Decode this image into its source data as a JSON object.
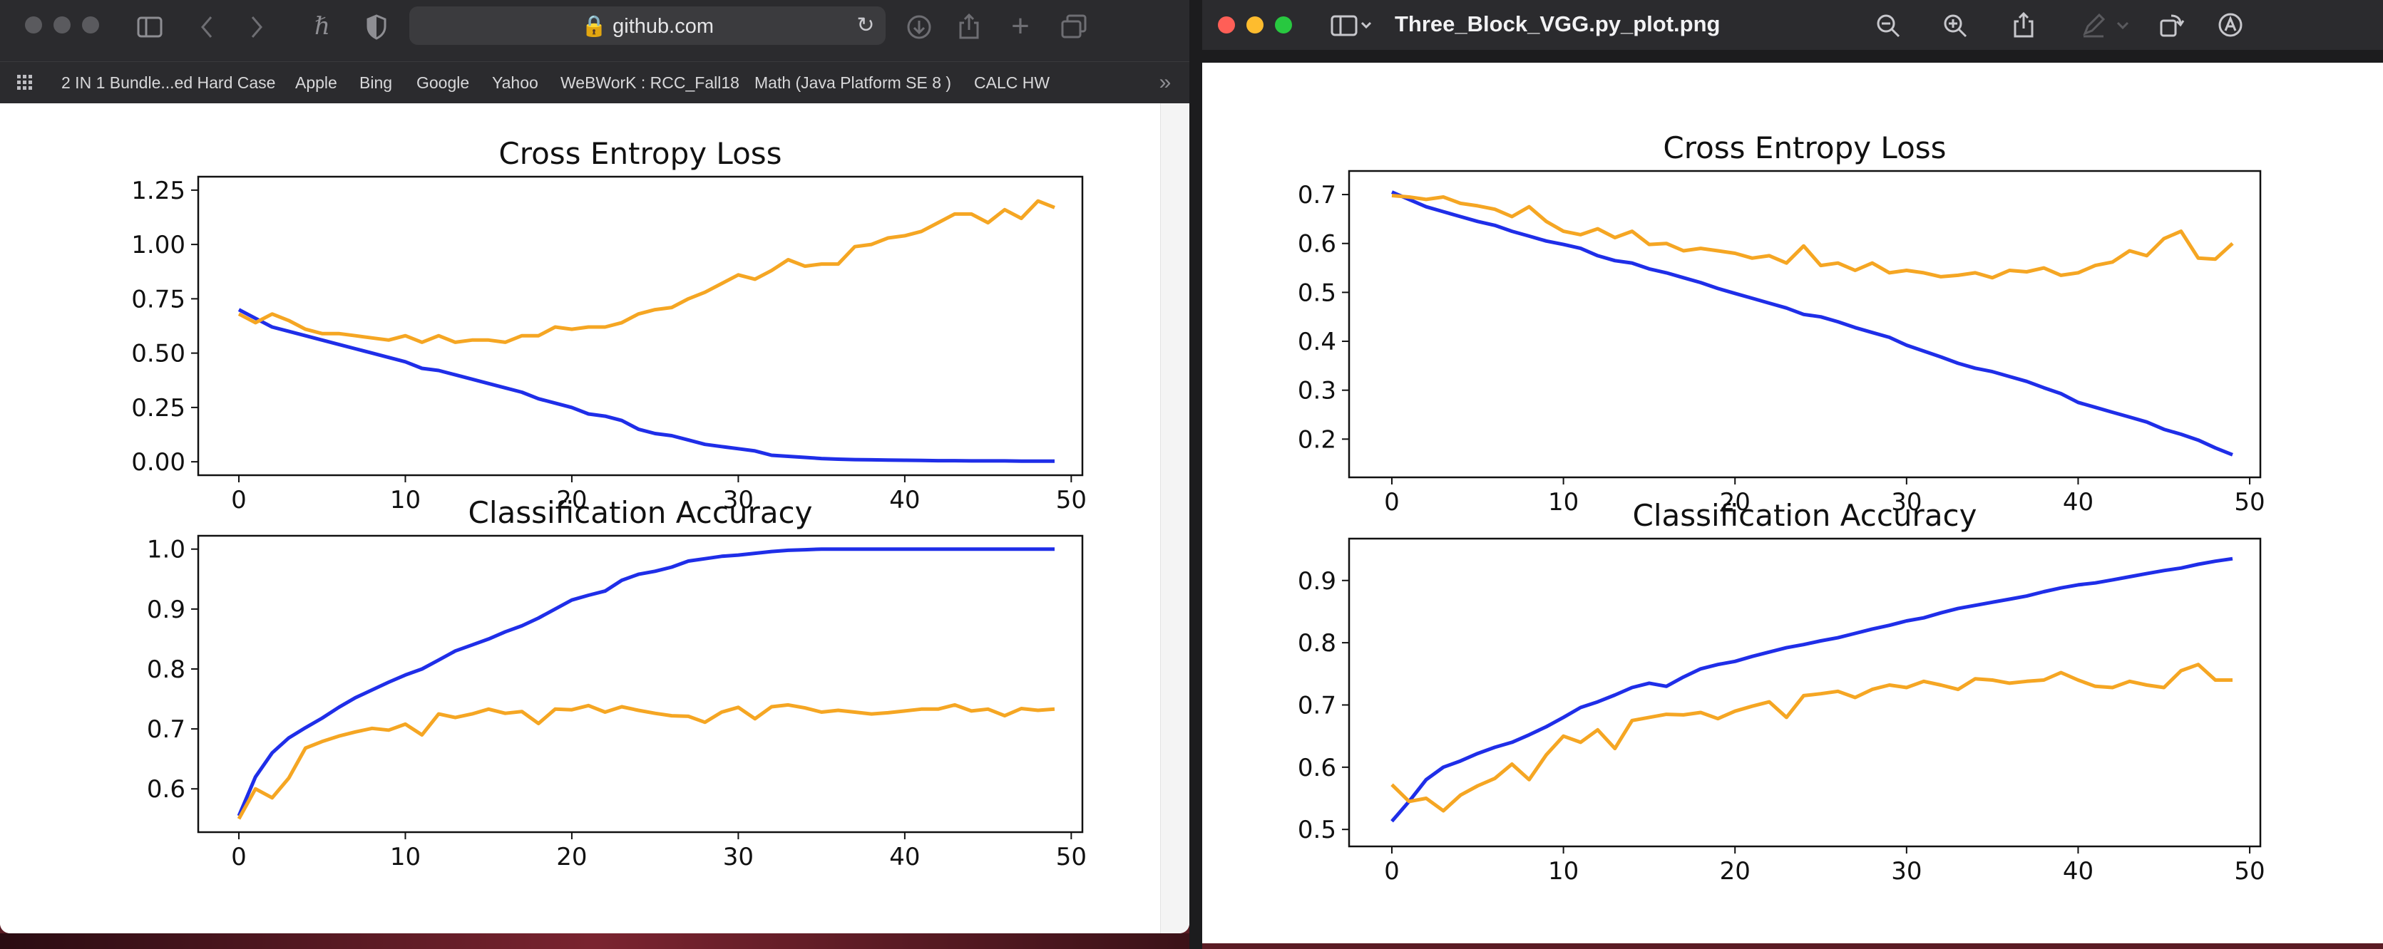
{
  "safari": {
    "address": "github.com",
    "bookmarks": [
      "2 IN 1 Bundle...ed Hard Case",
      "Apple",
      "Bing",
      "Google",
      "Yahoo",
      "WeBWorK : RCC_Fall18",
      "Math (Java Platform SE 8 )",
      "CALC HW"
    ]
  },
  "preview": {
    "title": "Three_Block_VGG.py_plot.png"
  },
  "colors": {
    "train": "#1f2ee8",
    "test": "#f5a623"
  },
  "chart_data": [
    {
      "type": "line",
      "window": "safari",
      "title": "Cross Entropy Loss",
      "xlabel": "",
      "ylabel": "",
      "xlim": [
        0,
        49
      ],
      "ylim": [
        0,
        1.25
      ],
      "xticks": [
        0,
        10,
        20,
        30,
        40,
        50
      ],
      "yticks": [
        0.0,
        0.25,
        0.5,
        0.75,
        1.0,
        1.25
      ],
      "ytick_labels": [
        "0.00",
        "0.25",
        "0.50",
        "0.75",
        "1.00",
        "1.25"
      ],
      "series": [
        {
          "color": "#1f2ee8",
          "values": [
            0.7,
            0.66,
            0.62,
            0.6,
            0.58,
            0.56,
            0.54,
            0.52,
            0.5,
            0.48,
            0.46,
            0.43,
            0.42,
            0.4,
            0.38,
            0.36,
            0.34,
            0.32,
            0.29,
            0.27,
            0.25,
            0.22,
            0.21,
            0.19,
            0.15,
            0.13,
            0.12,
            0.1,
            0.08,
            0.07,
            0.06,
            0.05,
            0.03,
            0.025,
            0.02,
            0.015,
            0.012,
            0.01,
            0.009,
            0.008,
            0.007,
            0.006,
            0.005,
            0.005,
            0.004,
            0.004,
            0.004,
            0.003,
            0.003,
            0.003
          ]
        },
        {
          "color": "#f5a623",
          "values": [
            0.68,
            0.64,
            0.68,
            0.65,
            0.61,
            0.59,
            0.59,
            0.58,
            0.57,
            0.56,
            0.58,
            0.55,
            0.58,
            0.55,
            0.56,
            0.56,
            0.55,
            0.58,
            0.58,
            0.62,
            0.61,
            0.62,
            0.62,
            0.64,
            0.68,
            0.7,
            0.71,
            0.75,
            0.78,
            0.82,
            0.86,
            0.84,
            0.88,
            0.93,
            0.9,
            0.91,
            0.91,
            0.99,
            1.0,
            1.03,
            1.04,
            1.06,
            1.1,
            1.14,
            1.14,
            1.1,
            1.16,
            1.12,
            1.2,
            1.17
          ]
        }
      ]
    },
    {
      "type": "line",
      "window": "safari",
      "title": "Classification Accuracy",
      "xlabel": "",
      "ylabel": "",
      "xlim": [
        0,
        49
      ],
      "ylim": [
        0.55,
        1.0
      ],
      "xticks": [
        0,
        10,
        20,
        30,
        40,
        50
      ],
      "yticks": [
        0.6,
        0.7,
        0.8,
        0.9,
        1.0
      ],
      "ytick_labels": [
        "0.6",
        "0.7",
        "0.8",
        "0.9",
        "1.0"
      ],
      "series": [
        {
          "color": "#1f2ee8",
          "values": [
            0.555,
            0.62,
            0.66,
            0.685,
            0.702,
            0.718,
            0.736,
            0.752,
            0.765,
            0.778,
            0.79,
            0.8,
            0.815,
            0.83,
            0.84,
            0.85,
            0.862,
            0.872,
            0.885,
            0.9,
            0.915,
            0.923,
            0.93,
            0.948,
            0.958,
            0.963,
            0.97,
            0.98,
            0.984,
            0.988,
            0.99,
            0.993,
            0.996,
            0.998,
            0.999,
            1.0,
            1.0,
            1.0,
            1.0,
            1.0,
            1.0,
            1.0,
            1.0,
            1.0,
            1.0,
            1.0,
            1.0,
            1.0,
            1.0,
            1.0
          ]
        },
        {
          "color": "#f5a623",
          "values": [
            0.55,
            0.6,
            0.585,
            0.618,
            0.668,
            0.679,
            0.688,
            0.695,
            0.701,
            0.698,
            0.708,
            0.69,
            0.725,
            0.719,
            0.725,
            0.733,
            0.726,
            0.729,
            0.709,
            0.733,
            0.732,
            0.739,
            0.728,
            0.737,
            0.731,
            0.726,
            0.722,
            0.721,
            0.711,
            0.728,
            0.736,
            0.717,
            0.737,
            0.74,
            0.735,
            0.728,
            0.731,
            0.728,
            0.725,
            0.727,
            0.73,
            0.733,
            0.733,
            0.74,
            0.73,
            0.733,
            0.722,
            0.734,
            0.731,
            0.733
          ]
        }
      ]
    },
    {
      "type": "line",
      "window": "preview",
      "title": "Cross Entropy Loss",
      "xlabel": "",
      "ylabel": "",
      "xlim": [
        0,
        49
      ],
      "ylim": [
        0.15,
        0.72
      ],
      "xticks": [
        0,
        10,
        20,
        30,
        40,
        50
      ],
      "yticks": [
        0.2,
        0.3,
        0.4,
        0.5,
        0.6,
        0.7
      ],
      "ytick_labels": [
        "0.2",
        "0.3",
        "0.4",
        "0.5",
        "0.6",
        "0.7"
      ],
      "series": [
        {
          "color": "#1f2ee8",
          "values": [
            0.705,
            0.69,
            0.675,
            0.665,
            0.655,
            0.645,
            0.637,
            0.625,
            0.615,
            0.605,
            0.598,
            0.59,
            0.575,
            0.565,
            0.56,
            0.548,
            0.54,
            0.53,
            0.52,
            0.508,
            0.498,
            0.488,
            0.478,
            0.468,
            0.455,
            0.45,
            0.44,
            0.428,
            0.418,
            0.408,
            0.392,
            0.38,
            0.368,
            0.355,
            0.345,
            0.338,
            0.328,
            0.318,
            0.305,
            0.293,
            0.275,
            0.265,
            0.255,
            0.245,
            0.235,
            0.22,
            0.21,
            0.198,
            0.182,
            0.168
          ]
        },
        {
          "color": "#f5a623",
          "values": [
            0.698,
            0.695,
            0.69,
            0.695,
            0.682,
            0.677,
            0.67,
            0.655,
            0.675,
            0.645,
            0.625,
            0.618,
            0.63,
            0.612,
            0.625,
            0.598,
            0.6,
            0.585,
            0.59,
            0.585,
            0.58,
            0.57,
            0.575,
            0.56,
            0.595,
            0.555,
            0.56,
            0.545,
            0.56,
            0.54,
            0.545,
            0.54,
            0.532,
            0.535,
            0.54,
            0.53,
            0.545,
            0.542,
            0.55,
            0.535,
            0.54,
            0.555,
            0.562,
            0.585,
            0.575,
            0.61,
            0.625,
            0.57,
            0.568,
            0.6
          ]
        }
      ]
    },
    {
      "type": "line",
      "window": "preview",
      "title": "Classification Accuracy",
      "xlabel": "",
      "ylabel": "",
      "xlim": [
        0,
        49
      ],
      "ylim": [
        0.495,
        0.945
      ],
      "xticks": [
        0,
        10,
        20,
        30,
        40,
        50
      ],
      "yticks": [
        0.5,
        0.6,
        0.7,
        0.8,
        0.9
      ],
      "ytick_labels": [
        "0.5",
        "0.6",
        "0.7",
        "0.8",
        "0.9"
      ],
      "series": [
        {
          "color": "#1f2ee8",
          "values": [
            0.513,
            0.545,
            0.58,
            0.6,
            0.61,
            0.622,
            0.632,
            0.64,
            0.652,
            0.665,
            0.68,
            0.696,
            0.705,
            0.716,
            0.728,
            0.735,
            0.73,
            0.745,
            0.758,
            0.765,
            0.77,
            0.778,
            0.785,
            0.792,
            0.797,
            0.803,
            0.808,
            0.815,
            0.822,
            0.828,
            0.835,
            0.84,
            0.848,
            0.855,
            0.86,
            0.865,
            0.87,
            0.875,
            0.882,
            0.888,
            0.893,
            0.896,
            0.901,
            0.906,
            0.911,
            0.916,
            0.92,
            0.926,
            0.931,
            0.935
          ]
        },
        {
          "color": "#f5a623",
          "values": [
            0.572,
            0.545,
            0.55,
            0.53,
            0.555,
            0.57,
            0.582,
            0.605,
            0.58,
            0.62,
            0.65,
            0.64,
            0.66,
            0.63,
            0.675,
            0.68,
            0.685,
            0.684,
            0.688,
            0.678,
            0.69,
            0.698,
            0.705,
            0.68,
            0.715,
            0.718,
            0.722,
            0.712,
            0.725,
            0.732,
            0.728,
            0.738,
            0.732,
            0.725,
            0.742,
            0.74,
            0.735,
            0.738,
            0.74,
            0.752,
            0.74,
            0.73,
            0.728,
            0.738,
            0.732,
            0.728,
            0.755,
            0.765,
            0.74,
            0.74
          ]
        }
      ]
    }
  ]
}
